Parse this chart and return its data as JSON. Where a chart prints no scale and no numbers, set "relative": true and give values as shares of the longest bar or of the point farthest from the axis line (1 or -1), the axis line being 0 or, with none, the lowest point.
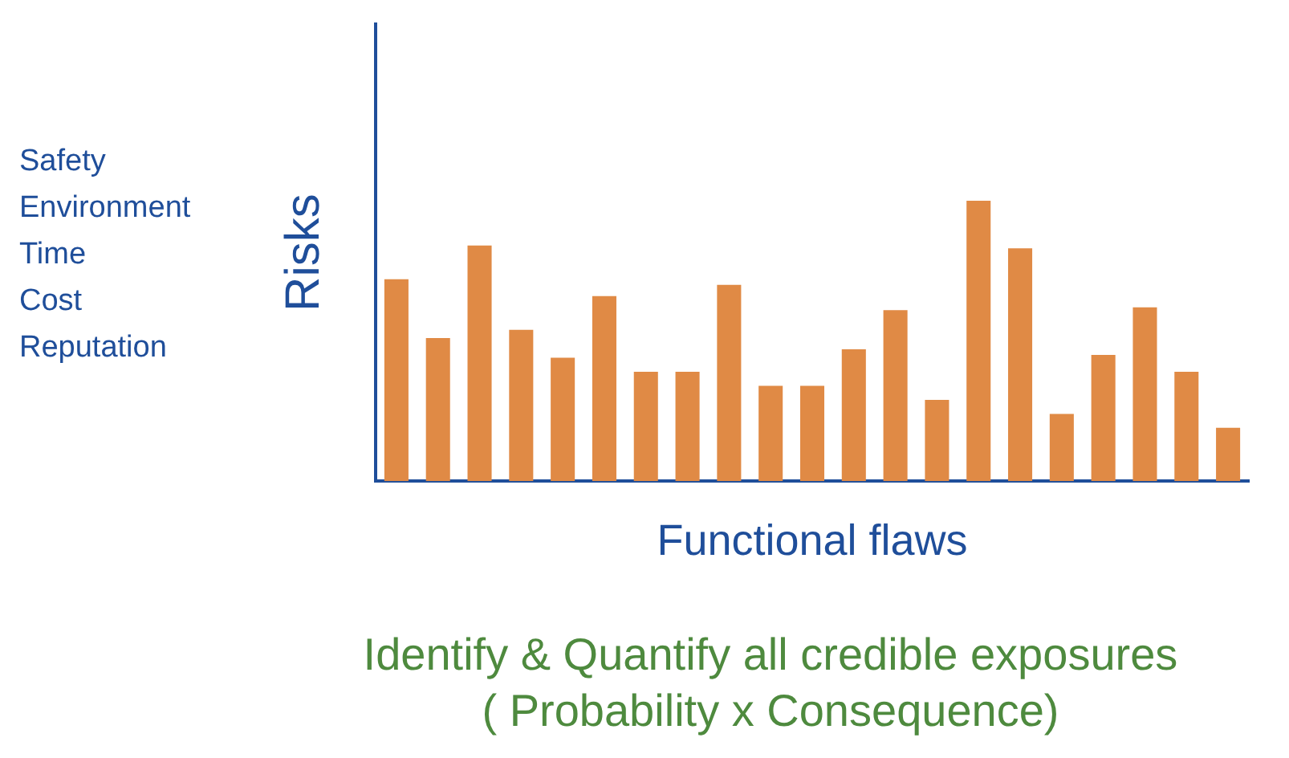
{
  "chart_data": {
    "type": "bar",
    "relative": true,
    "ylabel": "Risks",
    "xlabel": "Functional flaws",
    "color": "#e08a45",
    "categories": [
      null,
      null,
      null,
      null,
      null,
      null,
      null,
      null,
      null,
      null,
      null,
      null,
      null,
      null,
      null,
      null,
      null,
      null,
      null,
      null,
      null
    ],
    "values": [
      0.72,
      0.51,
      0.84,
      0.54,
      0.44,
      0.66,
      0.39,
      0.39,
      0.7,
      0.34,
      0.34,
      0.47,
      0.61,
      0.29,
      1,
      0.83,
      0.24,
      0.45,
      0.62,
      0.39,
      0.19
    ],
    "annotations": [
      "Safety\nEnvironment\nTime\nCost\nReputation",
      "Identify & Quantify all credible exposures\n( Probability x Consequence)"
    ]
  }
}
